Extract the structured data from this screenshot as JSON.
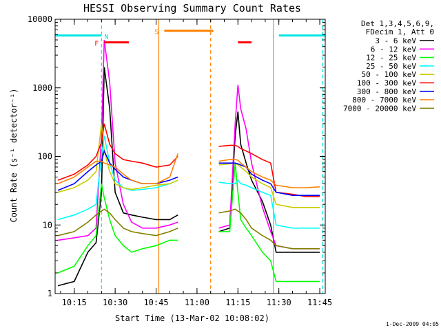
{
  "chart_data": {
    "type": "line",
    "title": "HESSI Observing Summary Count Rates",
    "xlabel": "Start Time (13-Mar-02 10:08:02)",
    "ylabel": "Count Rate (s⁻¹ detector⁻¹)",
    "y_scale": "log",
    "ylim": [
      1,
      10000
    ],
    "xlim": [
      "10:08",
      "11:47"
    ],
    "x_ticks": [
      "10:15",
      "10:30",
      "10:45",
      "11:00",
      "11:15",
      "11:30",
      "11:45"
    ],
    "y_ticks": [
      "1",
      "10",
      "100",
      "1000",
      "10000"
    ],
    "legend_header": [
      "Det 1,3,4,5,6,9,",
      "FDecim 1, Att 0"
    ],
    "legend_position": "right",
    "timestamp": "1-Dec-2009 04:05",
    "flags": [
      {
        "label": "",
        "color": "#00e5e5",
        "level": 5800,
        "segments": [
          [
            "10:08",
            "10:25"
          ],
          [
            "11:30",
            "11:47"
          ]
        ]
      },
      {
        "label": "N",
        "color": "#00e5e5",
        "level": 5800,
        "segments": []
      },
      {
        "label": "F",
        "color": "#ff0000",
        "level": 4600,
        "segments": [
          [
            "10:26",
            "10:35"
          ],
          [
            "11:15",
            "11:20"
          ]
        ]
      },
      {
        "label": "S",
        "color": "#ff8000",
        "level": 6800,
        "segments": [
          [
            "10:48",
            "11:06"
          ]
        ]
      }
    ],
    "markers": [
      {
        "color": "#00e5e5",
        "style": "dashed",
        "x": "10:25"
      },
      {
        "color": "#ff8000",
        "style": "solid",
        "x": "10:46"
      },
      {
        "color": "#ff8000",
        "style": "dashed",
        "x": "11:05"
      },
      {
        "color": "#00e5e5",
        "style": "solid",
        "x": "11:28"
      },
      {
        "color": "#00e5e5",
        "style": "dashed",
        "x": "11:46"
      }
    ],
    "x": [
      "10:09",
      "10:15",
      "10:20",
      "10:23",
      "10:25",
      "10:26",
      "10:28",
      "10:30",
      "10:33",
      "10:36",
      "10:40",
      "10:45",
      "10:50",
      "10:53",
      "11:08",
      "11:12",
      "11:14",
      "11:15",
      "11:16",
      "11:18",
      "11:20",
      "11:24",
      "11:27",
      "11:29",
      "11:35",
      "11:40",
      "11:45"
    ],
    "segments": [
      [
        0,
        13
      ],
      [
        14,
        26
      ]
    ],
    "series": [
      {
        "name": "3 - 6 keV",
        "color": "#000000",
        "values": [
          1.3,
          1.5,
          4.0,
          5.5,
          30,
          2000,
          500,
          30,
          15,
          14,
          13,
          12,
          12,
          14,
          8,
          9,
          200,
          450,
          150,
          80,
          45,
          22,
          10,
          4,
          4,
          4,
          4
        ]
      },
      {
        "name": "6 - 12 keV",
        "color": "#ff00ff",
        "values": [
          6,
          6.5,
          7,
          9,
          200,
          5000,
          1200,
          80,
          20,
          11,
          9,
          9,
          10,
          11,
          9,
          10,
          300,
          1100,
          500,
          250,
          80,
          18,
          8,
          5,
          4.5,
          4.5,
          4.5
        ]
      },
      {
        "name": "12 - 25 keV",
        "color": "#00ff00",
        "values": [
          2,
          2.5,
          5,
          7,
          40,
          25,
          12,
          7,
          5,
          4,
          4.5,
          5,
          6,
          6,
          8,
          8,
          80,
          30,
          12,
          9,
          7,
          4,
          3,
          1.5,
          1.5,
          1.5,
          1.5
        ]
      },
      {
        "name": "25 - 50 keV",
        "color": "#00ffff",
        "values": [
          12,
          14,
          17,
          20,
          100,
          200,
          80,
          45,
          35,
          32,
          33,
          35,
          40,
          45,
          42,
          40,
          40,
          45,
          40,
          38,
          35,
          30,
          27,
          10,
          9,
          9,
          9
        ]
      },
      {
        "name": "50 - 100 keV",
        "color": "#cccc00",
        "values": [
          30,
          35,
          45,
          60,
          300,
          120,
          60,
          40,
          35,
          33,
          35,
          38,
          40,
          45,
          75,
          78,
          80,
          75,
          70,
          60,
          50,
          40,
          35,
          20,
          18,
          18,
          18
        ]
      },
      {
        "name": "100 - 300 keV",
        "color": "#ff0000",
        "values": [
          45,
          55,
          75,
          100,
          160,
          300,
          150,
          110,
          90,
          85,
          80,
          70,
          75,
          100,
          140,
          145,
          145,
          140,
          130,
          120,
          110,
          90,
          80,
          30,
          28,
          26,
          26
        ]
      },
      {
        "name": "300 - 800 keV",
        "color": "#0000ff",
        "values": [
          32,
          40,
          60,
          75,
          85,
          120,
          80,
          65,
          50,
          45,
          40,
          40,
          45,
          50,
          80,
          80,
          80,
          78,
          75,
          70,
          55,
          45,
          40,
          30,
          27,
          27,
          27
        ]
      },
      {
        "name": "800 - 7000 keV",
        "color": "#ff8000",
        "values": [
          40,
          50,
          70,
          85,
          85,
          80,
          75,
          70,
          55,
          45,
          40,
          40,
          50,
          110,
          85,
          90,
          90,
          88,
          80,
          70,
          60,
          50,
          45,
          38,
          35,
          35,
          36
        ]
      },
      {
        "name": "7000 - 20000 keV",
        "color": "#808000",
        "values": [
          7,
          8,
          11,
          14,
          16,
          17,
          15,
          12,
          9,
          8,
          7.5,
          7,
          8,
          9,
          15,
          16,
          17,
          16,
          15,
          12,
          9,
          7,
          6,
          5,
          4.5,
          4.5,
          4.5
        ]
      }
    ]
  }
}
